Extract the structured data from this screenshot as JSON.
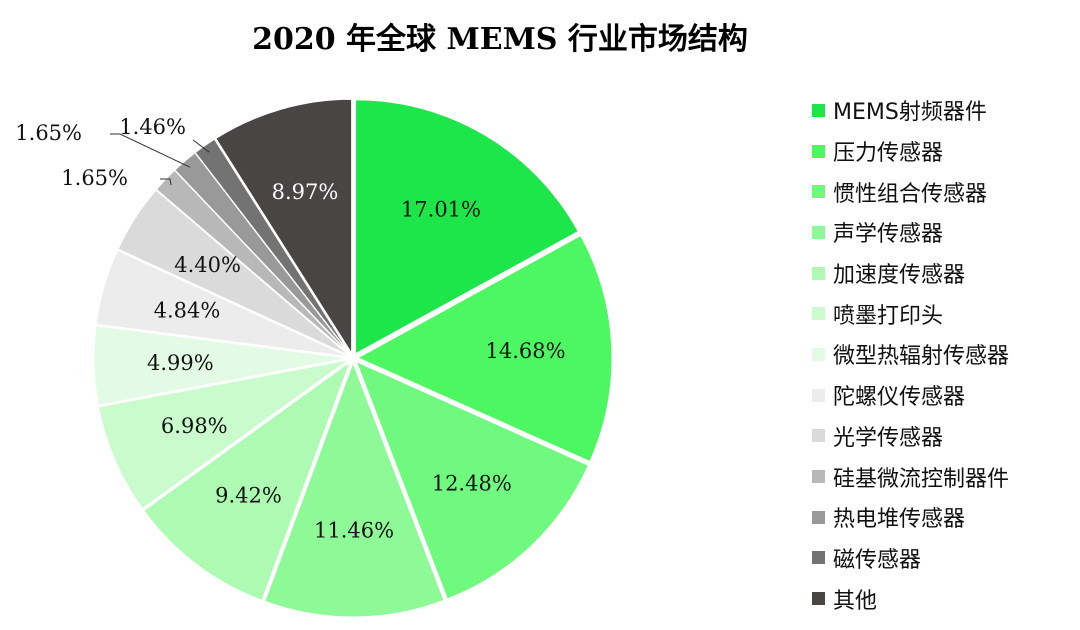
{
  "chart_data": {
    "type": "pie",
    "title": "2020 年全球 MEMS 行业市场结构",
    "legend_position": "right",
    "slices": [
      {
        "label": "MEMS射频器件",
        "value": 17.01,
        "value_label": "17.01%",
        "color": "#1de64a"
      },
      {
        "label": "压力传感器",
        "value": 14.68,
        "value_label": "14.68%",
        "color": "#4cf762"
      },
      {
        "label": "惯性组合传感器",
        "value": 12.48,
        "value_label": "12.48%",
        "color": "#6ff97f"
      },
      {
        "label": "声学传感器",
        "value": 11.46,
        "value_label": "11.46%",
        "color": "#8ef997"
      },
      {
        "label": "加速度传感器",
        "value": 9.42,
        "value_label": "9.42%",
        "color": "#adfab2"
      },
      {
        "label": "喷墨打印头",
        "value": 6.98,
        "value_label": "6.98%",
        "color": "#c9fbcc"
      },
      {
        "label": "微型热辐射传感器",
        "value": 4.99,
        "value_label": "4.99%",
        "color": "#e3fbe4"
      },
      {
        "label": "陀螺仪传感器",
        "value": 4.84,
        "value_label": "4.84%",
        "color": "#ececec"
      },
      {
        "label": "光学传感器",
        "value": 4.4,
        "value_label": "4.40%",
        "color": "#dadada"
      },
      {
        "label": "硅基微流控制器件",
        "value": 1.65,
        "value_label": "1.65%",
        "color": "#b8b8b8"
      },
      {
        "label": "热电堆传感器",
        "value": 1.65,
        "value_label": "1.65%",
        "color": "#999999"
      },
      {
        "label": "磁传感器",
        "value": 1.46,
        "value_label": "1.46%",
        "color": "#737373"
      },
      {
        "label": "其他",
        "value": 8.97,
        "value_label": "8.97%",
        "color": "#4a4545"
      }
    ]
  }
}
